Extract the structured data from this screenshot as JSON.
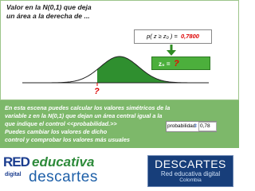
{
  "header": {
    "lines": [
      "Valor en la N(0,1) que deja",
      "un área a la derecha de ..."
    ]
  },
  "probability_box": {
    "label": "p( z ≥ z₀ ) =",
    "value": "0,7800"
  },
  "z_box": {
    "label": "z₀ =",
    "value": "?"
  },
  "curve_marker": "?",
  "description": {
    "lines": [
      "En esta escena puedes calcular los valores simétricos de la",
      "variable z en la N(0,1) que dejan un área central igual a la",
      "que indique el control <<probabilidad.>>",
      "Puedes cambiar los valores de dicho",
      "control y comprobar los valores más usuales"
    ]
  },
  "control": {
    "label": "probabilidad",
    "value": "0,78"
  },
  "logo_left": {
    "red": "RED",
    "educativa": "educativa",
    "digital": "digital",
    "descartes": "descartes"
  },
  "logo_right": {
    "title": "DESCARTES",
    "subtitle": "Red educativa digital",
    "country": "Colombia"
  }
}
